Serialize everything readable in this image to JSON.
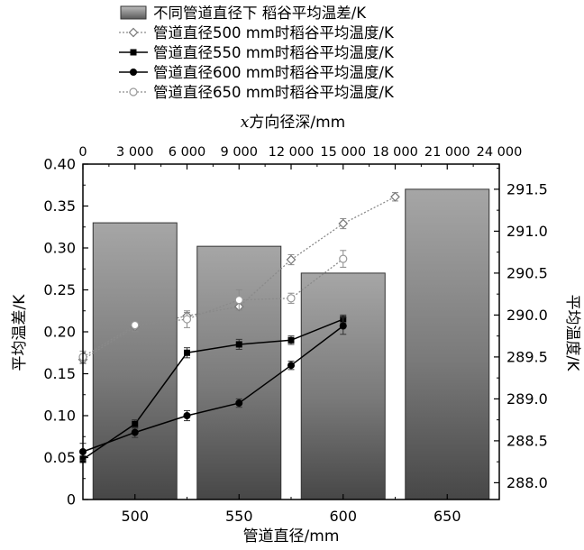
{
  "chart_data": {
    "type": "bar+line",
    "bar_series": {
      "name": "不同管道直径下 稻谷平均温差/K",
      "categories": [
        500,
        550,
        600,
        650
      ],
      "values": [
        0.33,
        0.302,
        0.27,
        0.37
      ]
    },
    "line_series": [
      {
        "name": "管道直径500 mm时稻谷平均温度/K",
        "marker": "open-diamond",
        "style": "dotted",
        "x": [
          0,
          3000,
          6000,
          9000,
          12000,
          15000,
          18000,
          21000
        ],
        "y": [
          289.47,
          289.86,
          289.99,
          290.1,
          290.66,
          291.09,
          291.41,
          null
        ],
        "err": [
          0.05,
          0.05,
          0.04,
          0.04,
          0.06,
          0.06,
          0.05,
          null
        ]
      },
      {
        "name": "管道直径550 mm时稻谷平均温度/K",
        "marker": "filled-square",
        "style": "solid",
        "x": [
          0,
          3000,
          6000,
          9000,
          12000,
          15000,
          18000,
          21000
        ],
        "y": [
          288.28,
          288.7,
          289.55,
          289.65,
          289.7,
          289.95,
          null,
          null
        ],
        "err": [
          0.04,
          0.05,
          0.06,
          0.06,
          0.05,
          0.05,
          null,
          null
        ]
      },
      {
        "name": "管道直径600 mm时稻谷平均温度/K",
        "marker": "filled-circle",
        "style": "solid",
        "x": [
          0,
          3000,
          6000,
          9000,
          12000,
          15000,
          18000,
          21000
        ],
        "y": [
          288.37,
          288.6,
          288.8,
          288.95,
          289.4,
          289.87,
          null,
          null
        ],
        "err": [
          0.1,
          0.06,
          0.06,
          0.05,
          0.05,
          0.1,
          null,
          null
        ]
      },
      {
        "name": "管道直径650 mm时稻谷平均温度/K",
        "marker": "open-circle",
        "style": "dotted",
        "x": [
          0,
          3000,
          6000,
          9000,
          12000,
          15000,
          18000,
          21000
        ],
        "y": [
          289.5,
          289.88,
          289.95,
          290.18,
          290.2,
          290.67,
          null,
          null
        ],
        "err": [
          0.07,
          0.08,
          0.1,
          0.12,
          0.06,
          0.1,
          null,
          null
        ]
      }
    ],
    "xlabel_bottom": "管道直径/mm",
    "xlabel_top_italic": "x",
    "xlabel_top_rest": "方向径深/mm",
    "ylabel_left": "平均温差/K",
    "ylabel_right": "平均温度/K",
    "x_bottom_ticks": [
      500,
      550,
      600,
      650
    ],
    "x_bottom_range": [
      475,
      675
    ],
    "x_top_ticks": [
      0,
      3000,
      6000,
      9000,
      12000,
      15000,
      18000,
      21000,
      24000
    ],
    "x_top_tick_labels": [
      "0",
      "3 000",
      "6 000",
      "9 000",
      "12 000",
      "15 000",
      "18 000",
      "21 000",
      "24 000"
    ],
    "x_top_range": [
      0,
      24000
    ],
    "y_left_range": [
      0,
      0.4
    ],
    "y_left_ticks": [
      0,
      0.05,
      0.1,
      0.15,
      0.2,
      0.25,
      0.3,
      0.35,
      0.4
    ],
    "y_left_tick_labels": [
      "0",
      "0.05",
      "0.10",
      "0.15",
      "0.20",
      "0.25",
      "0.30",
      "0.35",
      "0.40"
    ],
    "y_right_range": [
      287.8,
      291.8
    ],
    "y_right_ticks": [
      288.0,
      288.5,
      289.0,
      289.5,
      290.0,
      290.5,
      291.0,
      291.5
    ],
    "y_right_tick_labels": [
      "288.0",
      "288.5",
      "289.0",
      "289.5",
      "290.0",
      "290.5",
      "291.0",
      "291.5"
    ],
    "legend_position": "top",
    "grid": false
  }
}
